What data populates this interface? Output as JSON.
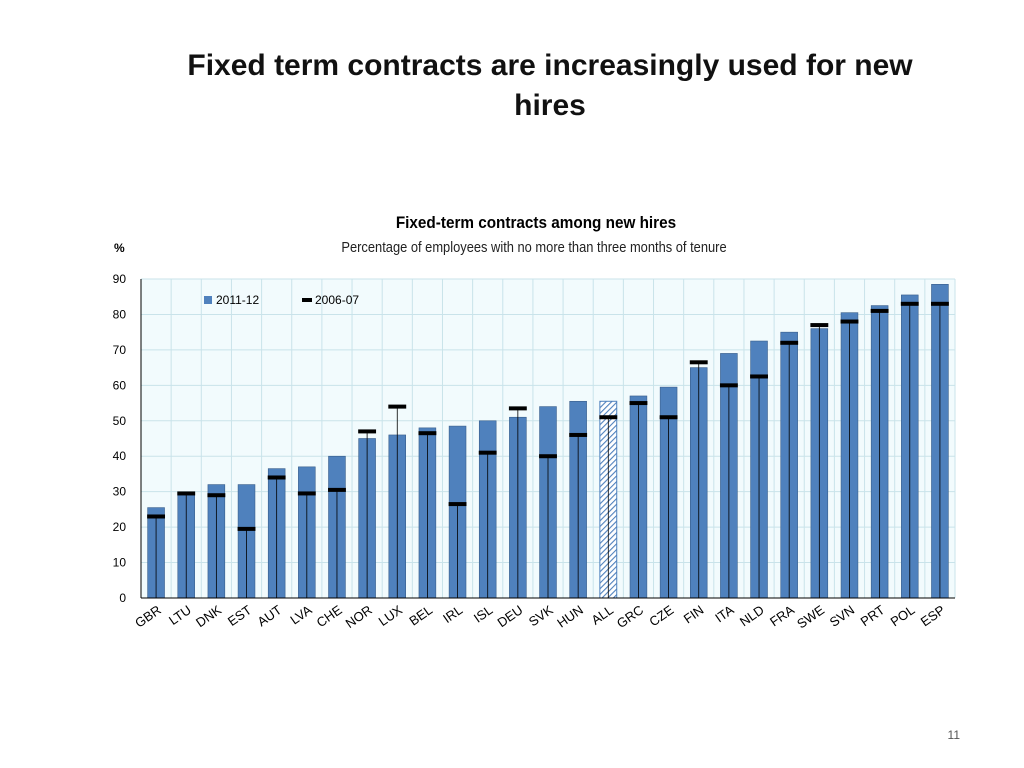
{
  "slide": {
    "title": "Fixed term contracts are increasingly used for new hires",
    "page_number": "11"
  },
  "colors": {
    "bar": "#4f81bd",
    "bar_edge": "#385d8a",
    "bar_hatch": "#4f81bd",
    "marker": "#000000",
    "plot_bg": "#f2fbfd",
    "grid": "#c9e3ea"
  },
  "chart_data": {
    "type": "bar",
    "title": "Fixed-term contracts among new hires",
    "subtitle": "Percentage of employees with no more than three months of tenure",
    "ylabel": "%",
    "xlabel": "",
    "ylim": [
      0,
      90
    ],
    "yticks": [
      0,
      10,
      20,
      30,
      40,
      50,
      60,
      70,
      80,
      90
    ],
    "grid": true,
    "legend_position": "top-left",
    "categories": [
      "GBR",
      "LTU",
      "DNK",
      "EST",
      "AUT",
      "LVA",
      "CHE",
      "NOR",
      "LUX",
      "BEL",
      "IRL",
      "ISL",
      "DEU",
      "SVK",
      "HUN",
      "ALL",
      "GRC",
      "CZE",
      "FIN",
      "ITA",
      "NLD",
      "FRA",
      "SWE",
      "SVN",
      "PRT",
      "POL",
      "ESP"
    ],
    "highlighted_category": "ALL",
    "series": [
      {
        "name": "2011-12",
        "kind": "bar",
        "values": [
          25.5,
          29.5,
          32,
          32,
          36.5,
          37,
          40,
          45,
          46,
          48,
          48.5,
          50,
          51,
          54,
          55.5,
          55.5,
          57,
          59.5,
          65,
          69,
          72.5,
          75,
          76,
          80.5,
          82.5,
          85.5,
          88.5
        ]
      },
      {
        "name": "2006-07",
        "kind": "marker",
        "values": [
          23,
          29.5,
          29,
          19.5,
          34,
          29.5,
          30.5,
          47,
          54,
          46.5,
          26.5,
          41,
          53.5,
          40,
          46,
          51,
          55,
          51,
          66.5,
          60,
          62.5,
          72,
          77,
          78,
          81,
          83,
          83
        ]
      }
    ]
  }
}
